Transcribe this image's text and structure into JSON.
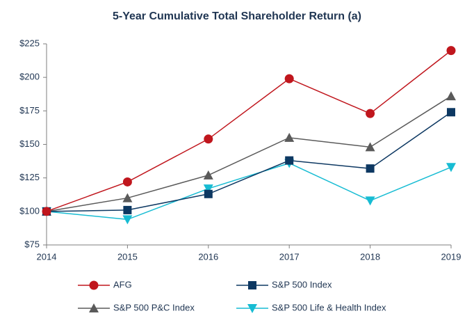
{
  "chart_data": {
    "type": "line",
    "title": "5-Year Cumulative Total Shareholder Return (a)",
    "x": [
      2014,
      2015,
      2016,
      2017,
      2018,
      2019
    ],
    "xlim": [
      2014,
      2019
    ],
    "xticks": [
      2014,
      2015,
      2016,
      2017,
      2018,
      2019
    ],
    "ylim": [
      75,
      225
    ],
    "yticks": [
      {
        "value": 75,
        "label": "$75"
      },
      {
        "value": 100,
        "label": "$100"
      },
      {
        "value": 125,
        "label": "$125"
      },
      {
        "value": 150,
        "label": "$150"
      },
      {
        "value": 175,
        "label": "$175"
      },
      {
        "value": 200,
        "label": "$200"
      },
      {
        "value": 225,
        "label": "$225"
      }
    ],
    "series": [
      {
        "name": "AFG",
        "color": "#c0161d",
        "marker": "circle",
        "values": [
          100,
          122,
          154,
          199,
          173,
          220
        ]
      },
      {
        "name": "S&P 500 Index",
        "color": "#0d3862",
        "marker": "square",
        "values": [
          100,
          101,
          113,
          138,
          132,
          174
        ]
      },
      {
        "name": "S&P 500 P&C Index",
        "color": "#5a5a5a",
        "marker": "triangle-up",
        "values": [
          100,
          110,
          127,
          155,
          148,
          186
        ]
      },
      {
        "name": "S&P 500 Life & Health Index",
        "color": "#17bcd3",
        "marker": "triangle-down",
        "values": [
          100,
          94,
          117,
          136,
          108,
          133
        ]
      }
    ]
  }
}
